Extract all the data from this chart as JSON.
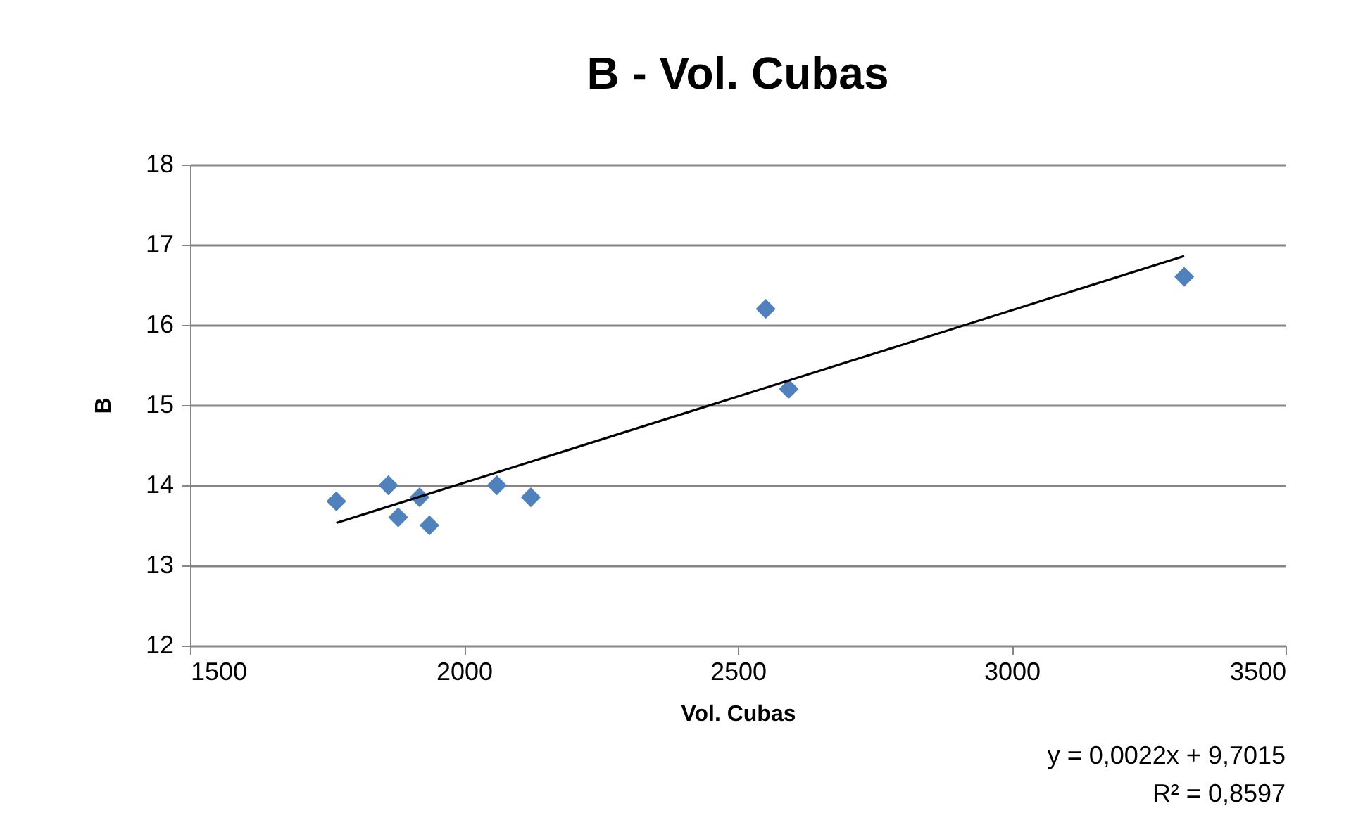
{
  "chart_data": {
    "type": "scatter",
    "title": "B - Vol. Cubas",
    "xlabel": "Vol. Cubas",
    "ylabel": "B",
    "xlim": [
      1500,
      3500
    ],
    "xticks": [
      1500,
      2000,
      2500,
      3000,
      3500
    ],
    "ylim": [
      12,
      18
    ],
    "yticks": [
      12,
      13,
      14,
      15,
      16,
      17,
      18
    ],
    "grid": "y",
    "series": [
      {
        "color": "#4f81bd",
        "marker": "diamond",
        "x": [
          1767,
          1862,
          1880,
          1919,
          1937,
          2060,
          2122,
          2551,
          2593,
          3315
        ],
        "values": [
          13.8,
          14.0,
          13.6,
          13.85,
          13.5,
          14.0,
          13.85,
          16.2,
          15.2,
          16.6
        ]
      },
      {
        "type": "line",
        "color": "#000000",
        "x": [
          1767,
          3315
        ],
        "values": [
          13.53,
          16.86
        ]
      }
    ],
    "annotations": [
      "y = 0,0022x + 9,7015",
      "R² = 0,8597"
    ]
  }
}
